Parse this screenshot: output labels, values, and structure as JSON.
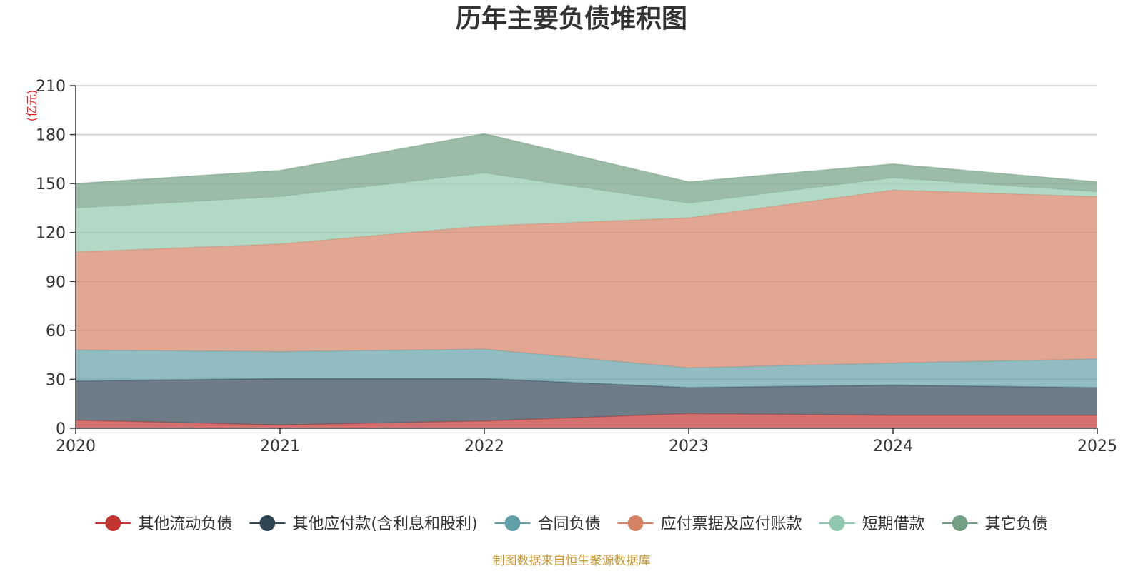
{
  "chart_data": {
    "type": "area",
    "stacked": true,
    "title": "历年主要负债堆积图",
    "ylabel": "(亿元)",
    "xlabel": "",
    "ylim": [
      0,
      210
    ],
    "yticks": [
      0,
      30,
      60,
      90,
      120,
      150,
      180,
      210
    ],
    "categories": [
      "2020",
      "2021",
      "2022",
      "2023",
      "2024",
      "2025"
    ],
    "grid": true,
    "legend_position": "bottom",
    "series": [
      {
        "name": "其他流动负债",
        "color": "#c23531",
        "values": [
          5,
          2,
          4.5,
          9,
          8,
          8
        ]
      },
      {
        "name": "其他应付款(含利息和股利)",
        "color": "#2f4554",
        "values": [
          24,
          28.5,
          26,
          16,
          18.5,
          17
        ]
      },
      {
        "name": "合同负债",
        "color": "#61a0a8",
        "values": [
          19,
          16.5,
          18,
          12,
          13.5,
          17.5
        ]
      },
      {
        "name": "应付票据及应付账款",
        "color": "#d48265",
        "values": [
          60,
          66,
          75.5,
          92,
          106,
          99.5
        ]
      },
      {
        "name": "短期借款",
        "color": "#91c7ae",
        "values": [
          27,
          29,
          32.5,
          9,
          7.5,
          3
        ]
      },
      {
        "name": "其它负债",
        "color": "#749f83",
        "values": [
          15,
          16,
          24,
          13,
          8.5,
          6
        ]
      }
    ],
    "source": "制图数据来自恒生聚源数据库"
  }
}
